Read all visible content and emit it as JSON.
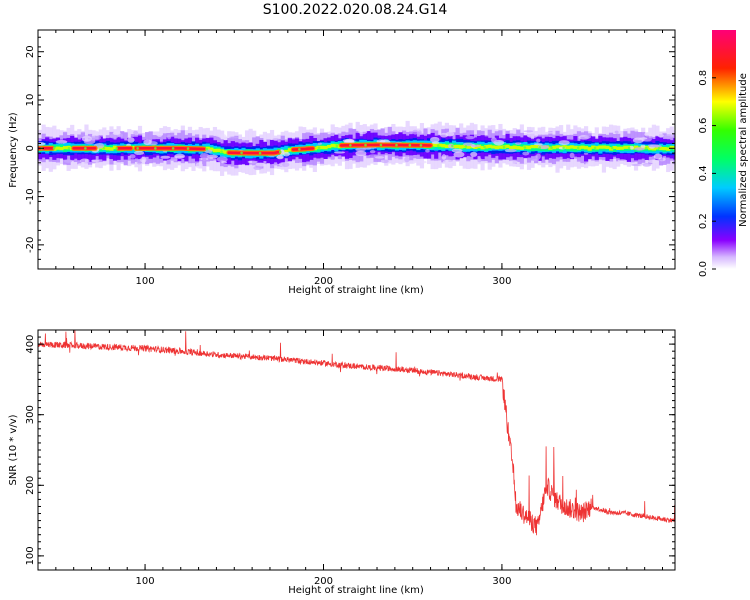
{
  "figure": {
    "title": "S100.2022.020.08.24.G14"
  },
  "chart_data": [
    {
      "type": "heatmap",
      "xlabel": "Height of straight line (km)",
      "ylabel": "Frequency (Hz)",
      "xlim": [
        40,
        397
      ],
      "ylim": [
        -25,
        24.5
      ],
      "x_ticks": [
        100,
        200,
        300
      ],
      "y_ticks": [
        -20,
        -10,
        0,
        10,
        20
      ],
      "grid": false,
      "colorbar": {
        "label": "Normalized spectral amplitude",
        "range": [
          0,
          1
        ],
        "ticks": [
          "0.0",
          "0.2",
          "0.4",
          "0.6",
          "0.8"
        ],
        "colormap": "rainbow (white-violet-blue-cyan-green-yellow-red-magenta)"
      },
      "ridge_frequency_hz": [
        {
          "x": 40,
          "f": 0.0
        },
        {
          "x": 60,
          "f": 0.0
        },
        {
          "x": 80,
          "f": 0.0
        },
        {
          "x": 100,
          "f": 0.0
        },
        {
          "x": 120,
          "f": 0.0
        },
        {
          "x": 138,
          "f": -0.2
        },
        {
          "x": 145,
          "f": -0.9
        },
        {
          "x": 160,
          "f": -1.0
        },
        {
          "x": 172,
          "f": -1.0
        },
        {
          "x": 182,
          "f": -0.3
        },
        {
          "x": 195,
          "f": 0.0
        },
        {
          "x": 210,
          "f": 0.6
        },
        {
          "x": 230,
          "f": 0.7
        },
        {
          "x": 260,
          "f": 0.6
        },
        {
          "x": 290,
          "f": 0.3
        },
        {
          "x": 330,
          "f": 0.1
        },
        {
          "x": 397,
          "f": 0.0
        }
      ]
    },
    {
      "type": "line",
      "xlabel": "Height of straight line (km)",
      "ylabel": "SNR (10 * v/v)",
      "xlim": [
        40,
        397
      ],
      "ylim": [
        80,
        420
      ],
      "x_ticks": [
        100,
        200,
        300
      ],
      "y_ticks": [
        100,
        200,
        300,
        400
      ],
      "grid": false,
      "color": "#ee3333",
      "series": [
        {
          "x": [
            40,
            60,
            80,
            100,
            120,
            140,
            160,
            180,
            200,
            220,
            240,
            260,
            280,
            290,
            300,
            302,
            304,
            306,
            308,
            312,
            316,
            320,
            325,
            330,
            335,
            340,
            345,
            350,
            360,
            370,
            380,
            390,
            397
          ],
          "values": [
            400,
            398,
            396,
            394,
            390,
            385,
            382,
            378,
            373,
            368,
            365,
            360,
            355,
            352,
            350,
            310,
            265,
            230,
            170,
            160,
            150,
            140,
            200,
            180,
            170,
            165,
            160,
            170,
            162,
            160,
            156,
            152,
            150
          ]
        }
      ]
    }
  ]
}
